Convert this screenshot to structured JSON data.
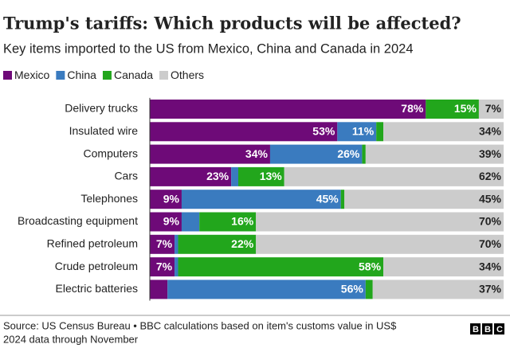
{
  "chart_data": {
    "type": "stacked-bar-horizontal",
    "title": "Trump's tariffs: Which products will be affected?",
    "subtitle": "Key items imported to the US from Mexico, China and Canada in 2024",
    "categories": [
      "Delivery trucks",
      "Insulated wire",
      "Computers",
      "Cars",
      "Telephones",
      "Broadcasting equipment",
      "Refined petroleum",
      "Crude petroleum",
      "Electric batteries"
    ],
    "xlim": [
      0,
      100
    ],
    "series": [
      {
        "name": "Mexico",
        "color": "#6e0a78",
        "values": [
          78,
          53,
          34,
          23,
          9,
          9,
          7,
          7,
          5
        ],
        "value_labels": [
          "78%",
          "53%",
          "34%",
          "23%",
          "9%",
          "9%",
          "7%",
          "7%",
          null
        ]
      },
      {
        "name": "China",
        "color": "#3a7bbf",
        "values": [
          0,
          11,
          26,
          2,
          45,
          5,
          1,
          1,
          56
        ],
        "value_labels": [
          null,
          "11%",
          "26%",
          null,
          "45%",
          null,
          null,
          null,
          "56%"
        ]
      },
      {
        "name": "Canada",
        "color": "#22a61c",
        "values": [
          15,
          2,
          1,
          13,
          1,
          16,
          22,
          58,
          2
        ],
        "value_labels": [
          "15%",
          null,
          null,
          "13%",
          null,
          "16%",
          "22%",
          "58%",
          null
        ]
      },
      {
        "name": "Others",
        "color": "#cccccc",
        "values": [
          7,
          34,
          39,
          62,
          45,
          70,
          70,
          34,
          37
        ],
        "value_labels": [
          "7%",
          "34%",
          "39%",
          "62%",
          "45%",
          "70%",
          "70%",
          "34%",
          "37%"
        ]
      }
    ],
    "source": "Source: US Census Bureau • BBC calculations based on item's customs value in US$",
    "note": "2024 data through November",
    "logo": "BBC"
  }
}
